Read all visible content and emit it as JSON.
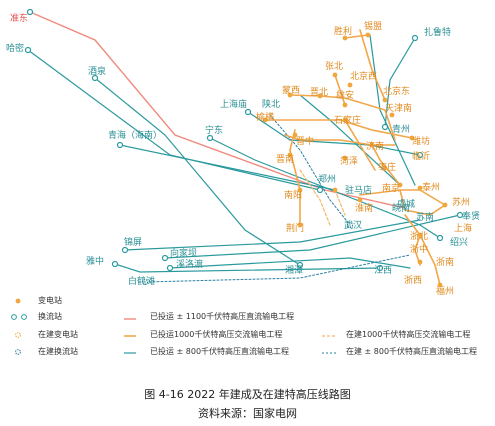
{
  "colors": {
    "uhv_dc_1100": "#f08a7e",
    "uhv_ac_1000": "#f2a64a",
    "uhv_dc_800": "#2a9a9e",
    "substation": "#f0a63a",
    "converter": "#2a9a9e"
  },
  "labels": {
    "zhundong": "准东",
    "hami": "哈密",
    "jiuquan": "酒泉",
    "qinghai": "青海（海南）",
    "shanghaimiao": "上海庙",
    "ningdong": "宁东",
    "shengli": "胜利",
    "ximeng": "锡盟",
    "zhalute": "扎鲁特",
    "zhangbei": "张北",
    "beijingxi": "北京西",
    "beijingdong": "北京东",
    "tianjinnan": "天津南",
    "mengxi": "蒙西",
    "jinbei": "晋北",
    "xiongan": "雄安",
    "shaanbei": "陕北",
    "yuheng": "榆横",
    "shijiazhuang": "石家庄",
    "qingzhou": "青州",
    "weifang": "潍坊",
    "jinzhong": "晋中",
    "jinan": "济南",
    "linyi": "临沂",
    "jinnan": "晋南",
    "heze": "菏泽",
    "zaozhuang": "枣庄",
    "zhengzhou": "郑州",
    "taizhou": "泰州",
    "nanjing": "南京",
    "zhumadian": "驻马店",
    "nanyang": "南阳",
    "huainan": "淮南",
    "wannan": "皖南",
    "suzhou": "苏州",
    "huaiyang": "虞城",
    "suzhou_nan": "苏南",
    "fengxian": "奉贤",
    "jingmen": "荆门",
    "wuhan": "武汉",
    "shanghai": "上海",
    "zhebei": "浙北",
    "shaoxing": "绍兴",
    "jinping": "锦屏",
    "xiangjiaba": "向家坝",
    "xiluodu": "溪洛渡",
    "yazhong": "雅中",
    "baihetan": "白鹤滩",
    "xiangtan": "湘潭",
    "jiangxi": "江西",
    "zhexi": "浙西",
    "zhezhong": "浙中",
    "zhenan": "浙南",
    "fuzhou": "福州"
  },
  "legend": {
    "substation": "变电站",
    "converter": "换流站",
    "substation_building": "在建变电站",
    "converter_building": "在建换流站",
    "dc_1100": "已投运 ± 1100千伏特高压直流输电工程",
    "ac_1000": "已投运1000千伏特高压交流输电工程",
    "dc_800": "已投运 ± 800千伏特高压直流输电工程",
    "ac_1000_building": "在建1000千伏特高压交流输电工程",
    "dc_800_building": "在建 ± 800千伏特高压直流输电工程"
  },
  "caption": {
    "title": "图 4-16  2022 年建成及在建特高压线路图",
    "source": "资料来源：国家电网"
  }
}
